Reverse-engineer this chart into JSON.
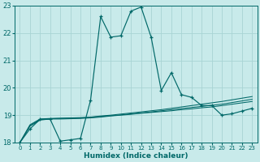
{
  "xlabel": "Humidex (Indice chaleur)",
  "xlim": [
    -0.5,
    23.5
  ],
  "ylim": [
    18,
    23
  ],
  "yticks": [
    18,
    19,
    20,
    21,
    22,
    23
  ],
  "xticks": [
    0,
    1,
    2,
    3,
    4,
    5,
    6,
    7,
    8,
    9,
    10,
    11,
    12,
    13,
    14,
    15,
    16,
    17,
    18,
    19,
    20,
    21,
    22,
    23
  ],
  "bg_color": "#c8eaea",
  "line_color": "#006868",
  "grid_color": "#a8d4d4",
  "main_x": [
    0,
    1,
    2,
    3,
    4,
    5,
    6,
    7,
    8,
    9,
    10,
    11,
    12,
    13,
    14,
    15,
    16,
    17,
    18,
    19,
    20,
    21,
    22,
    23
  ],
  "main_y": [
    18.0,
    18.5,
    18.85,
    18.85,
    18.05,
    18.1,
    18.15,
    19.55,
    22.6,
    21.85,
    21.9,
    22.8,
    22.95,
    21.85,
    19.9,
    20.55,
    19.75,
    19.65,
    19.35,
    19.35,
    19.0,
    19.05,
    19.15,
    19.25
  ],
  "line_smooth1_x": [
    0,
    1,
    2,
    3,
    4,
    5,
    6,
    7,
    8,
    9,
    10,
    11,
    12,
    13,
    14,
    15,
    16,
    17,
    18,
    19,
    20,
    21,
    22,
    23
  ],
  "line_smooth1_y": [
    18.0,
    18.6,
    18.82,
    18.86,
    18.86,
    18.87,
    18.88,
    18.9,
    18.93,
    18.97,
    19.0,
    19.03,
    19.07,
    19.1,
    19.13,
    19.16,
    19.2,
    19.23,
    19.27,
    19.3,
    19.35,
    19.4,
    19.45,
    19.5
  ],
  "line_smooth2_x": [
    0,
    1,
    2,
    3,
    4,
    5,
    6,
    7,
    8,
    9,
    10,
    11,
    12,
    13,
    14,
    15,
    16,
    17,
    18,
    19,
    20,
    21,
    22,
    23
  ],
  "line_smooth2_y": [
    18.0,
    18.62,
    18.84,
    18.87,
    18.88,
    18.89,
    18.9,
    18.92,
    18.95,
    18.98,
    19.01,
    19.05,
    19.08,
    19.12,
    19.16,
    19.2,
    19.24,
    19.28,
    19.32,
    19.36,
    19.4,
    19.46,
    19.52,
    19.58
  ],
  "line_smooth3_x": [
    0,
    1,
    2,
    3,
    4,
    5,
    6,
    7,
    8,
    9,
    10,
    11,
    12,
    13,
    14,
    15,
    16,
    17,
    18,
    19,
    20,
    21,
    22,
    23
  ],
  "line_smooth3_y": [
    18.0,
    18.65,
    18.86,
    18.88,
    18.89,
    18.9,
    18.91,
    18.93,
    18.97,
    19.0,
    19.04,
    19.08,
    19.12,
    19.16,
    19.2,
    19.25,
    19.3,
    19.35,
    19.4,
    19.45,
    19.5,
    19.56,
    19.62,
    19.68
  ]
}
